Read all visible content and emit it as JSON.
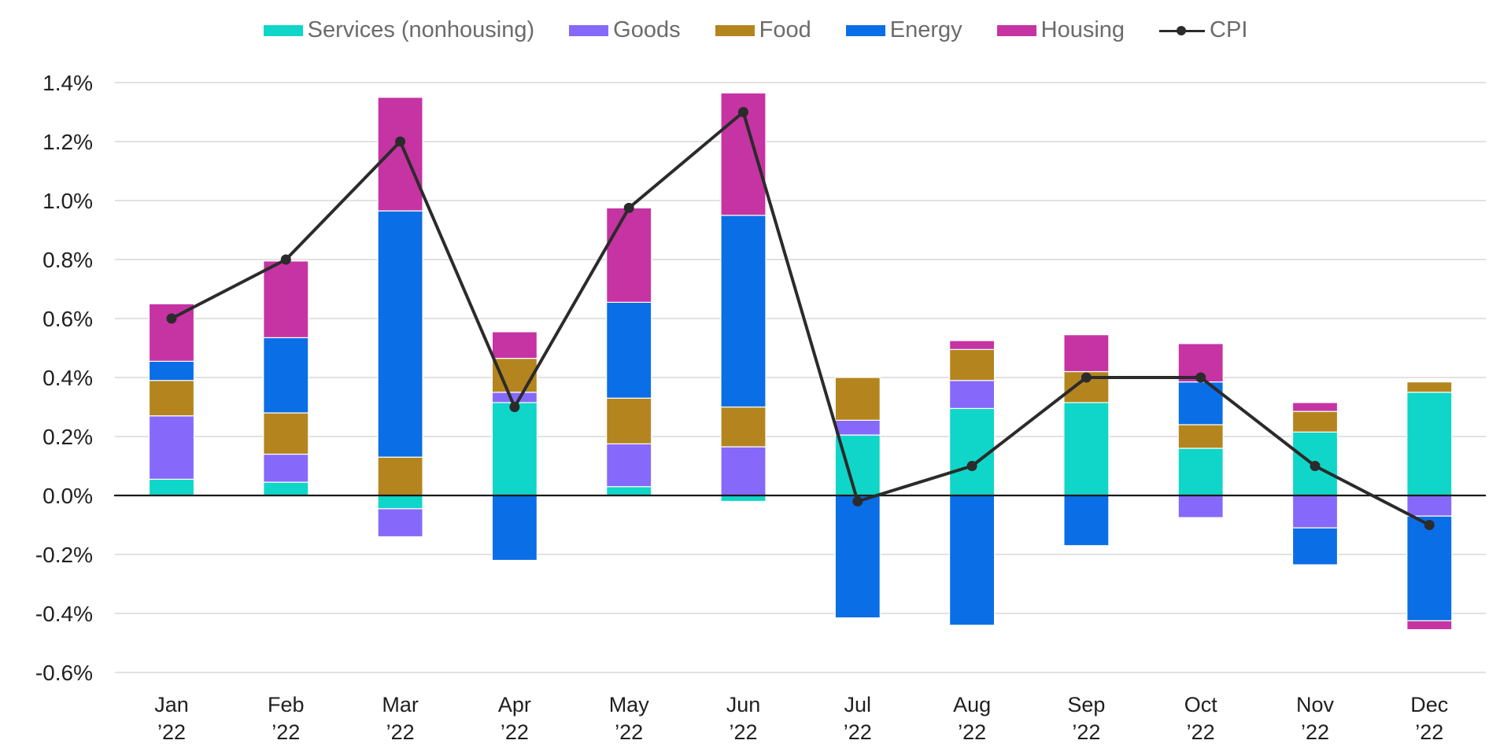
{
  "chart_data": {
    "type": "bar",
    "stacked": true,
    "title": "",
    "xlabel": "",
    "ylabel": "",
    "ylim": [
      -0.6,
      1.4
    ],
    "yticks": [
      1.4,
      1.2,
      1.0,
      0.8,
      0.6,
      0.4,
      0.2,
      0.0,
      -0.2,
      -0.4,
      -0.6
    ],
    "ytick_labels": [
      "1.4%",
      "1.2%",
      "1.0%",
      "0.8%",
      "0.6%",
      "0.4%",
      "0.2%",
      "0.0%",
      "-0.2%",
      "-0.4%",
      "-0.6%"
    ],
    "categories": [
      {
        "month": "Jan",
        "year": "’22"
      },
      {
        "month": "Feb",
        "year": "’22"
      },
      {
        "month": "Mar",
        "year": "’22"
      },
      {
        "month": "Apr",
        "year": "’22"
      },
      {
        "month": "May",
        "year": "’22"
      },
      {
        "month": "Jun",
        "year": "’22"
      },
      {
        "month": "Jul",
        "year": "’22"
      },
      {
        "month": "Aug",
        "year": "’22"
      },
      {
        "month": "Sep",
        "year": "’22"
      },
      {
        "month": "Oct",
        "year": "’22"
      },
      {
        "month": "Nov",
        "year": "’22"
      },
      {
        "month": "Dec",
        "year": "’22"
      }
    ],
    "series": [
      {
        "name": "Services (nonhousing)",
        "color": "#0fd6c8",
        "values": [
          0.055,
          0.045,
          -0.045,
          0.315,
          0.03,
          -0.02,
          0.205,
          0.295,
          0.315,
          0.16,
          0.215,
          0.35
        ]
      },
      {
        "name": "Goods",
        "color": "#8669fa",
        "values": [
          0.215,
          0.095,
          -0.095,
          0.035,
          0.145,
          0.165,
          0.05,
          0.095,
          0.0,
          -0.075,
          -0.11,
          -0.07
        ]
      },
      {
        "name": "Food",
        "color": "#b4851f",
        "values": [
          0.12,
          0.14,
          0.13,
          0.115,
          0.155,
          0.135,
          0.145,
          0.105,
          0.105,
          0.08,
          0.07,
          0.035
        ]
      },
      {
        "name": "Energy",
        "color": "#0a6ee6",
        "values": [
          0.065,
          0.255,
          0.835,
          -0.22,
          0.325,
          0.65,
          -0.415,
          -0.44,
          -0.17,
          0.145,
          -0.125,
          -0.355
        ]
      },
      {
        "name": "Housing",
        "color": "#c633a3",
        "values": [
          0.195,
          0.26,
          0.385,
          0.09,
          0.32,
          0.415,
          0.0,
          0.03,
          0.125,
          0.13,
          0.03,
          -0.03
        ]
      }
    ],
    "line": {
      "name": "CPI",
      "color": "#2b2b2b",
      "values": [
        0.6,
        0.8,
        1.2,
        0.3,
        0.975,
        1.3,
        -0.02,
        0.1,
        0.4,
        0.4,
        0.1,
        -0.1
      ]
    },
    "legend_position": "top-center",
    "grid": true
  }
}
